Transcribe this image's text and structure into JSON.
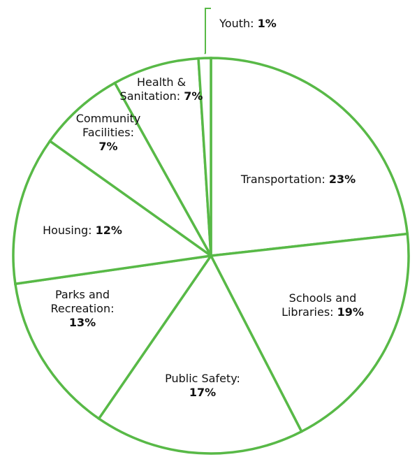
{
  "colors": {
    "stroke": "#58b947",
    "fill": "#ffffff",
    "text": "#111111"
  },
  "chart_data": {
    "type": "pie",
    "title": "",
    "start_angle": "12 o'clock",
    "direction": "clockwise",
    "legend": "none",
    "categories": [
      "Transportation",
      "Schools and Libraries",
      "Public Safety",
      "Parks and Recreation",
      "Housing",
      "Community Facilities",
      "Health & Sanitation",
      "Youth"
    ],
    "values": [
      23,
      19,
      17,
      13,
      12,
      7,
      7,
      1
    ],
    "slices": [
      {
        "name": "Transportation",
        "label_lines": [
          "Transportation:"
        ],
        "value_text": "23%",
        "value_inline": true
      },
      {
        "name": "Schools and Libraries",
        "label_lines": [
          "Schools and",
          "Libraries:"
        ],
        "value_text": "19%",
        "value_inline": true
      },
      {
        "name": "Public Safety",
        "label_lines": [
          "Public Safety:"
        ],
        "value_text": "17%",
        "value_inline": false
      },
      {
        "name": "Parks and Recreation",
        "label_lines": [
          "Parks and",
          "Recreation:"
        ],
        "value_text": "13%",
        "value_inline": false
      },
      {
        "name": "Housing",
        "label_lines": [
          "Housing:"
        ],
        "value_text": "12%",
        "value_inline": true
      },
      {
        "name": "Community Facilities",
        "label_lines": [
          "Community",
          "Facilities:"
        ],
        "value_text": "7%",
        "value_inline": false
      },
      {
        "name": "Health & Sanitation",
        "label_lines": [
          "Health &",
          "Sanitation:"
        ],
        "value_text": "7%",
        "value_inline": true
      },
      {
        "name": "Youth",
        "label_lines": [
          "Youth:"
        ],
        "value_text": "1%",
        "value_inline": true,
        "callout": true
      }
    ]
  }
}
